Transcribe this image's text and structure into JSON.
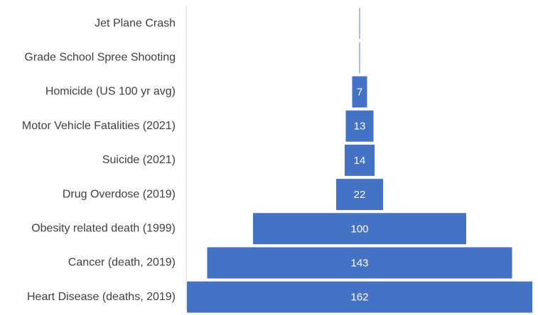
{
  "chart_data": {
    "type": "funnel",
    "categories": [
      "Jet Plane Crash",
      "Grade School Spree Shooting",
      "Homicide (US 100 yr avg)",
      "Motor Vehicle Fatalities (2021)",
      "Suicide (2021)",
      "Drug Overdose (2019)",
      "Obesity related death (1999)",
      "Cancer (death, 2019)",
      "Heart Disease (deaths, 2019)"
    ],
    "values": [
      0.3,
      0.3,
      7,
      13,
      14,
      22,
      100,
      143,
      162
    ],
    "value_labels": [
      null,
      null,
      "7",
      "13",
      "14",
      "22",
      "100",
      "143",
      "162"
    ],
    "color": "#4472c4"
  }
}
